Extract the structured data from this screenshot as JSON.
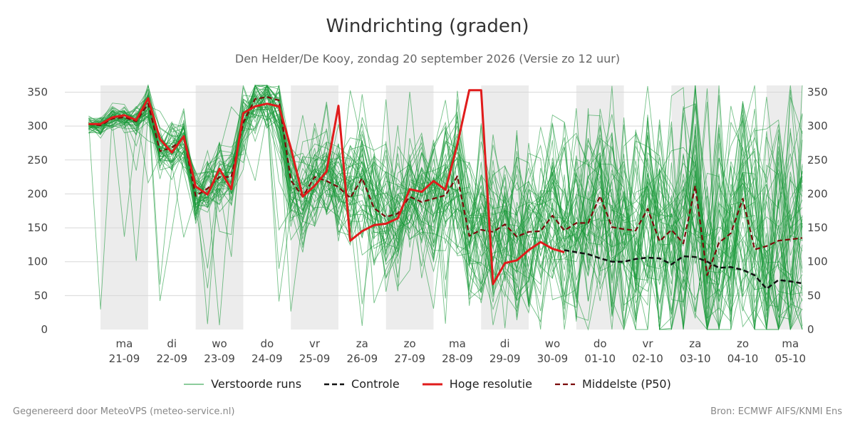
{
  "colors": {
    "weekend_band": "#ececec",
    "grid": "#d8d8d8",
    "ensemble": "#1a9a3a",
    "control": "#111111",
    "high_res": "#e01b1b",
    "median": "#7a0a0a"
  },
  "footer": {
    "left": "Gegenereerd door MeteoVPS (meteo-service.nl)",
    "right": "Bron: ECMWF AIFS/KNMI Ens"
  },
  "chart_data": {
    "type": "line",
    "title": "Windrichting (graden)",
    "subtitle": "Den Helder/De Kooy, zondag 20 september 2026 (Versie zo 12 uur)",
    "xlabel": "",
    "ylabel": "",
    "ylim": [
      0,
      360
    ],
    "yticks": [
      0,
      50,
      100,
      150,
      200,
      250,
      300,
      350
    ],
    "y_axis_both_sides": true,
    "grid": "horizontal",
    "legend_position": "bottom",
    "x_unit": "days since 2026-09-20 12:00",
    "xlim": [
      -0.75,
      14.75
    ],
    "x_ticks": [
      {
        "x": 0.5,
        "day": "ma",
        "date": "21-09"
      },
      {
        "x": 1.5,
        "day": "di",
        "date": "22-09"
      },
      {
        "x": 2.5,
        "day": "wo",
        "date": "23-09"
      },
      {
        "x": 3.5,
        "day": "do",
        "date": "24-09"
      },
      {
        "x": 4.5,
        "day": "vr",
        "date": "25-09"
      },
      {
        "x": 5.5,
        "day": "za",
        "date": "26-09"
      },
      {
        "x": 6.5,
        "day": "zo",
        "date": "27-09"
      },
      {
        "x": 7.5,
        "day": "ma",
        "date": "28-09"
      },
      {
        "x": 8.5,
        "day": "di",
        "date": "29-09"
      },
      {
        "x": 9.5,
        "day": "wo",
        "date": "30-09"
      },
      {
        "x": 10.5,
        "day": "do",
        "date": "01-10"
      },
      {
        "x": 11.5,
        "day": "vr",
        "date": "02-10"
      },
      {
        "x": 12.5,
        "day": "za",
        "date": "03-10"
      },
      {
        "x": 13.5,
        "day": "zo",
        "date": "04-10"
      },
      {
        "x": 14.5,
        "day": "ma",
        "date": "05-10"
      }
    ],
    "shaded_days": [
      [
        0,
        1
      ],
      [
        2,
        3
      ],
      [
        4,
        5
      ],
      [
        6,
        7
      ],
      [
        8,
        9
      ],
      [
        10,
        11
      ],
      [
        12,
        13
      ],
      [
        14,
        14.75
      ]
    ],
    "ensemble_members": 50,
    "ensemble_seed": 7,
    "legend": [
      {
        "key": "ensemble",
        "label": "Verstoorde runs"
      },
      {
        "key": "control",
        "label": "Controle"
      },
      {
        "key": "high_res",
        "label": "Hoge resolutie"
      },
      {
        "key": "median",
        "label": "Middelste (P50)"
      }
    ],
    "series": [
      {
        "name": "Hoge resolutie",
        "key": "high_res",
        "x": [
          -0.25,
          0,
          0.25,
          0.5,
          0.75,
          1,
          1.25,
          1.5,
          1.75,
          2,
          2.25,
          2.5,
          2.75,
          3,
          3.25,
          3.5,
          3.75,
          4,
          4.25,
          4.5,
          4.75,
          5,
          5.25,
          5.5,
          5.75,
          6,
          6.25,
          6.5,
          6.75,
          7,
          7.25,
          7.5,
          7.75,
          8,
          8.25,
          8.5,
          8.75,
          9,
          9.25,
          9.5,
          9.75
        ],
        "y": [
          303,
          303,
          313,
          316,
          309,
          341,
          281,
          261,
          285,
          211,
          199,
          237,
          207,
          319,
          329,
          333,
          329,
          268,
          196,
          212,
          233,
          330,
          131,
          145,
          154,
          156,
          164,
          207,
          203,
          219,
          206,
          273,
          353,
          353,
          67,
          98,
          102,
          117,
          129,
          119,
          114
        ]
      },
      {
        "name": "Controle",
        "key": "control",
        "x": [
          9.75,
          10,
          10.25,
          10.5,
          10.75,
          11,
          11.25,
          11.5,
          11.75,
          12,
          12.25,
          12.5,
          12.75,
          13,
          13.25,
          13.5,
          13.75,
          14,
          14.25,
          14.5,
          14.75
        ],
        "y": [
          117,
          114,
          111,
          105,
          100,
          100,
          104,
          106,
          105,
          96,
          108,
          107,
          100,
          91,
          92,
          88,
          80,
          60,
          73,
          71,
          68
        ]
      },
      {
        "name": "Middelste (P50)",
        "key": "median",
        "x": [
          -0.25,
          0,
          0.25,
          0.5,
          0.75,
          1,
          1.25,
          1.5,
          1.75,
          2,
          2.25,
          2.5,
          2.75,
          3,
          3.25,
          3.5,
          3.75,
          4,
          4.25,
          4.5,
          4.75,
          5,
          5.25,
          5.5,
          5.75,
          6,
          6.25,
          6.5,
          6.75,
          7,
          7.25,
          7.5,
          7.75,
          8,
          8.25,
          8.5,
          8.75,
          9,
          9.25,
          9.5,
          9.75,
          10,
          10.25,
          10.5,
          10.75,
          11,
          11.25,
          11.5,
          11.75,
          12,
          12.25,
          12.5,
          12.75,
          13,
          13.25,
          13.5,
          13.75,
          14,
          14.25,
          14.5,
          14.75
        ],
        "y": [
          303,
          301,
          311,
          313,
          307,
          333,
          263,
          268,
          283,
          197,
          208,
          225,
          225,
          305,
          340,
          343,
          338,
          220,
          196,
          225,
          219,
          210,
          194,
          223,
          179,
          166,
          171,
          196,
          188,
          193,
          198,
          226,
          138,
          147,
          144,
          155,
          137,
          144,
          145,
          168,
          146,
          157,
          157,
          197,
          151,
          148,
          146,
          178,
          130,
          147,
          127,
          212,
          80,
          128,
          142,
          193,
          118,
          123,
          131,
          133,
          135
        ]
      }
    ]
  }
}
